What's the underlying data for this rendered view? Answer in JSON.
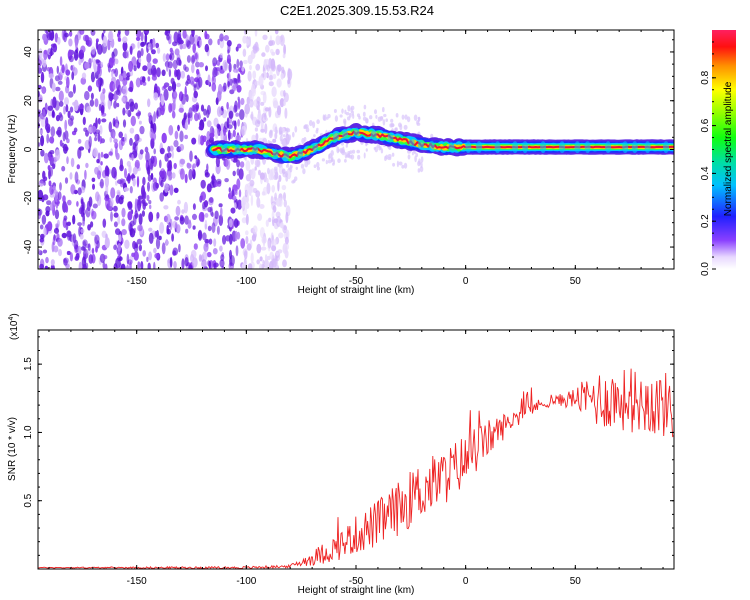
{
  "title": "C2E1.2025.309.15.53.R24",
  "chart_data": [
    {
      "type": "heatmap",
      "xlabel": "Height of straight line (km)",
      "ylabel": "Frequency (Hz)",
      "xlim": [
        -195,
        95
      ],
      "ylim": [
        -49,
        49
      ],
      "xticks": [
        -150,
        -100,
        -50,
        0,
        50
      ],
      "yticks": [
        -40,
        -20,
        0,
        20,
        40
      ],
      "ytick_labels": [
        "-40",
        "-20",
        "0",
        "20",
        "40"
      ],
      "colorbar": {
        "label": "Normalized spectral amplitude",
        "range": [
          0,
          1
        ],
        "ticks": [
          0.0,
          0.2,
          0.4,
          0.6,
          0.8
        ],
        "tick_labels": [
          "0.0",
          "0.2",
          "0.4",
          "0.6",
          "0.8"
        ]
      },
      "noise_region_km": [
        -195,
        -85
      ],
      "signal_ridge": {
        "start_km": -115,
        "points": [
          [
            -115,
            0
          ],
          [
            -95,
            0
          ],
          [
            -80,
            -3
          ],
          [
            -70,
            0
          ],
          [
            -60,
            5
          ],
          [
            -50,
            7
          ],
          [
            -40,
            6
          ],
          [
            -30,
            4
          ],
          [
            -20,
            2
          ],
          [
            -10,
            1
          ],
          [
            0,
            1
          ],
          [
            95,
            1
          ]
        ]
      }
    },
    {
      "type": "line",
      "xlabel": "Height of straight line (km)",
      "ylabel": "SNR (10 * v/v)",
      "multiplier_label": "(x10",
      "multiplier_exp": "4",
      "xlim": [
        -195,
        95
      ],
      "ylim": [
        0,
        1.75
      ],
      "xticks": [
        -150,
        -100,
        -50,
        0,
        50
      ],
      "yticks": [
        0.5,
        1.0,
        1.5
      ],
      "ytick_labels": [
        "0.5",
        "1.0",
        "1.5"
      ],
      "series": [
        {
          "name": "SNR",
          "color": "#ee2222",
          "envelope": {
            "x": [
              -195,
              -100,
              -80,
              -70,
              -60,
              -50,
              -40,
              -30,
              -20,
              -10,
              0,
              10,
              20,
              30,
              40,
              50,
              60,
              70,
              80,
              90,
              95
            ],
            "y": [
              0.01,
              0.01,
              0.02,
              0.08,
              0.15,
              0.25,
              0.33,
              0.45,
              0.58,
              0.67,
              0.8,
              0.95,
              1.08,
              1.18,
              1.23,
              1.25,
              1.25,
              1.24,
              1.23,
              1.2,
              1.2
            ]
          },
          "jitter": {
            "x": [
              -195,
              -80,
              -60,
              -40,
              -20,
              0,
              20,
              40,
              50,
              60,
              95
            ],
            "amplitude": [
              0.003,
              0.01,
              0.1,
              0.18,
              0.22,
              0.2,
              0.08,
              0.03,
              0.08,
              0.22,
              0.25
            ]
          }
        }
      ]
    }
  ],
  "colors": {
    "series": "#ee2222",
    "noise_purple": "#6a1fe0",
    "ridge_red": "#ee1133",
    "axis": "#000000"
  }
}
